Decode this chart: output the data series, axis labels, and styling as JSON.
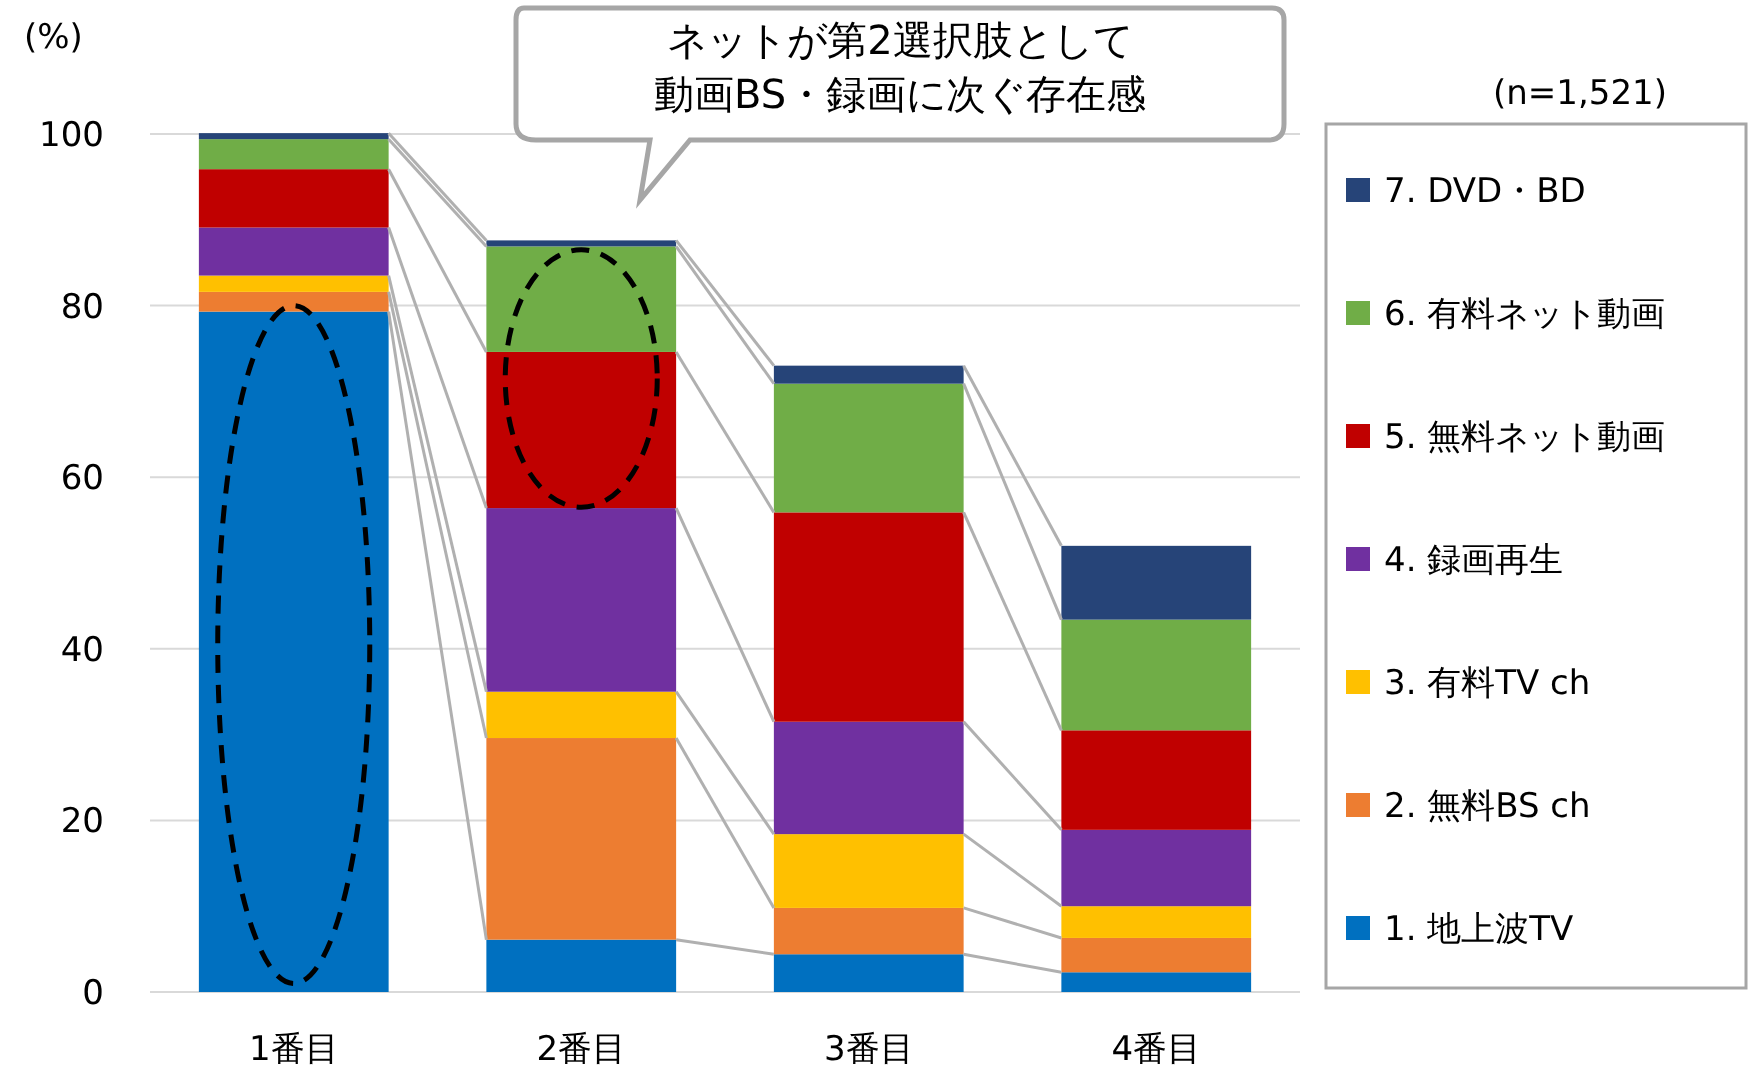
{
  "chart_data": {
    "type": "bar",
    "stacked": true,
    "ylabel": "(%)",
    "categories": [
      "1番目",
      "2番目",
      "3番目",
      "4番目"
    ],
    "ylim": [
      0,
      100
    ],
    "yticks": [
      0,
      20,
      40,
      60,
      80,
      100
    ],
    "grid": "y",
    "legend": "right",
    "annotations": [
      "ネットが第2選択肢として",
      "動画BS・録画に次ぐ存在感",
      "(n=1,521)"
    ],
    "series": [
      {
        "name": "1. 地上波TV",
        "color": "#0070c0",
        "values": [
          79.3,
          6.1,
          4.4,
          2.3
        ]
      },
      {
        "name": "2. 無料BS ch",
        "color": "#ed7d31",
        "values": [
          2.3,
          23.5,
          5.4,
          4.0
        ]
      },
      {
        "name": "3. 有料TV ch",
        "color": "#ffc000",
        "values": [
          1.9,
          5.4,
          8.6,
          3.7
        ]
      },
      {
        "name": "4. 録画再生",
        "color": "#7030a0",
        "values": [
          5.6,
          21.4,
          13.1,
          8.9
        ]
      },
      {
        "name": "5. 無料ネット動画",
        "color": "#c00000",
        "values": [
          6.8,
          18.2,
          24.4,
          11.6
        ]
      },
      {
        "name": "6. 有料ネット動画",
        "color": "#70ad47",
        "values": [
          3.5,
          12.3,
          15.0,
          12.9
        ]
      },
      {
        "name": "7. DVD・BD",
        "color": "#264478",
        "values": [
          0.7,
          0.7,
          2.1,
          8.6
        ]
      }
    ]
  }
}
